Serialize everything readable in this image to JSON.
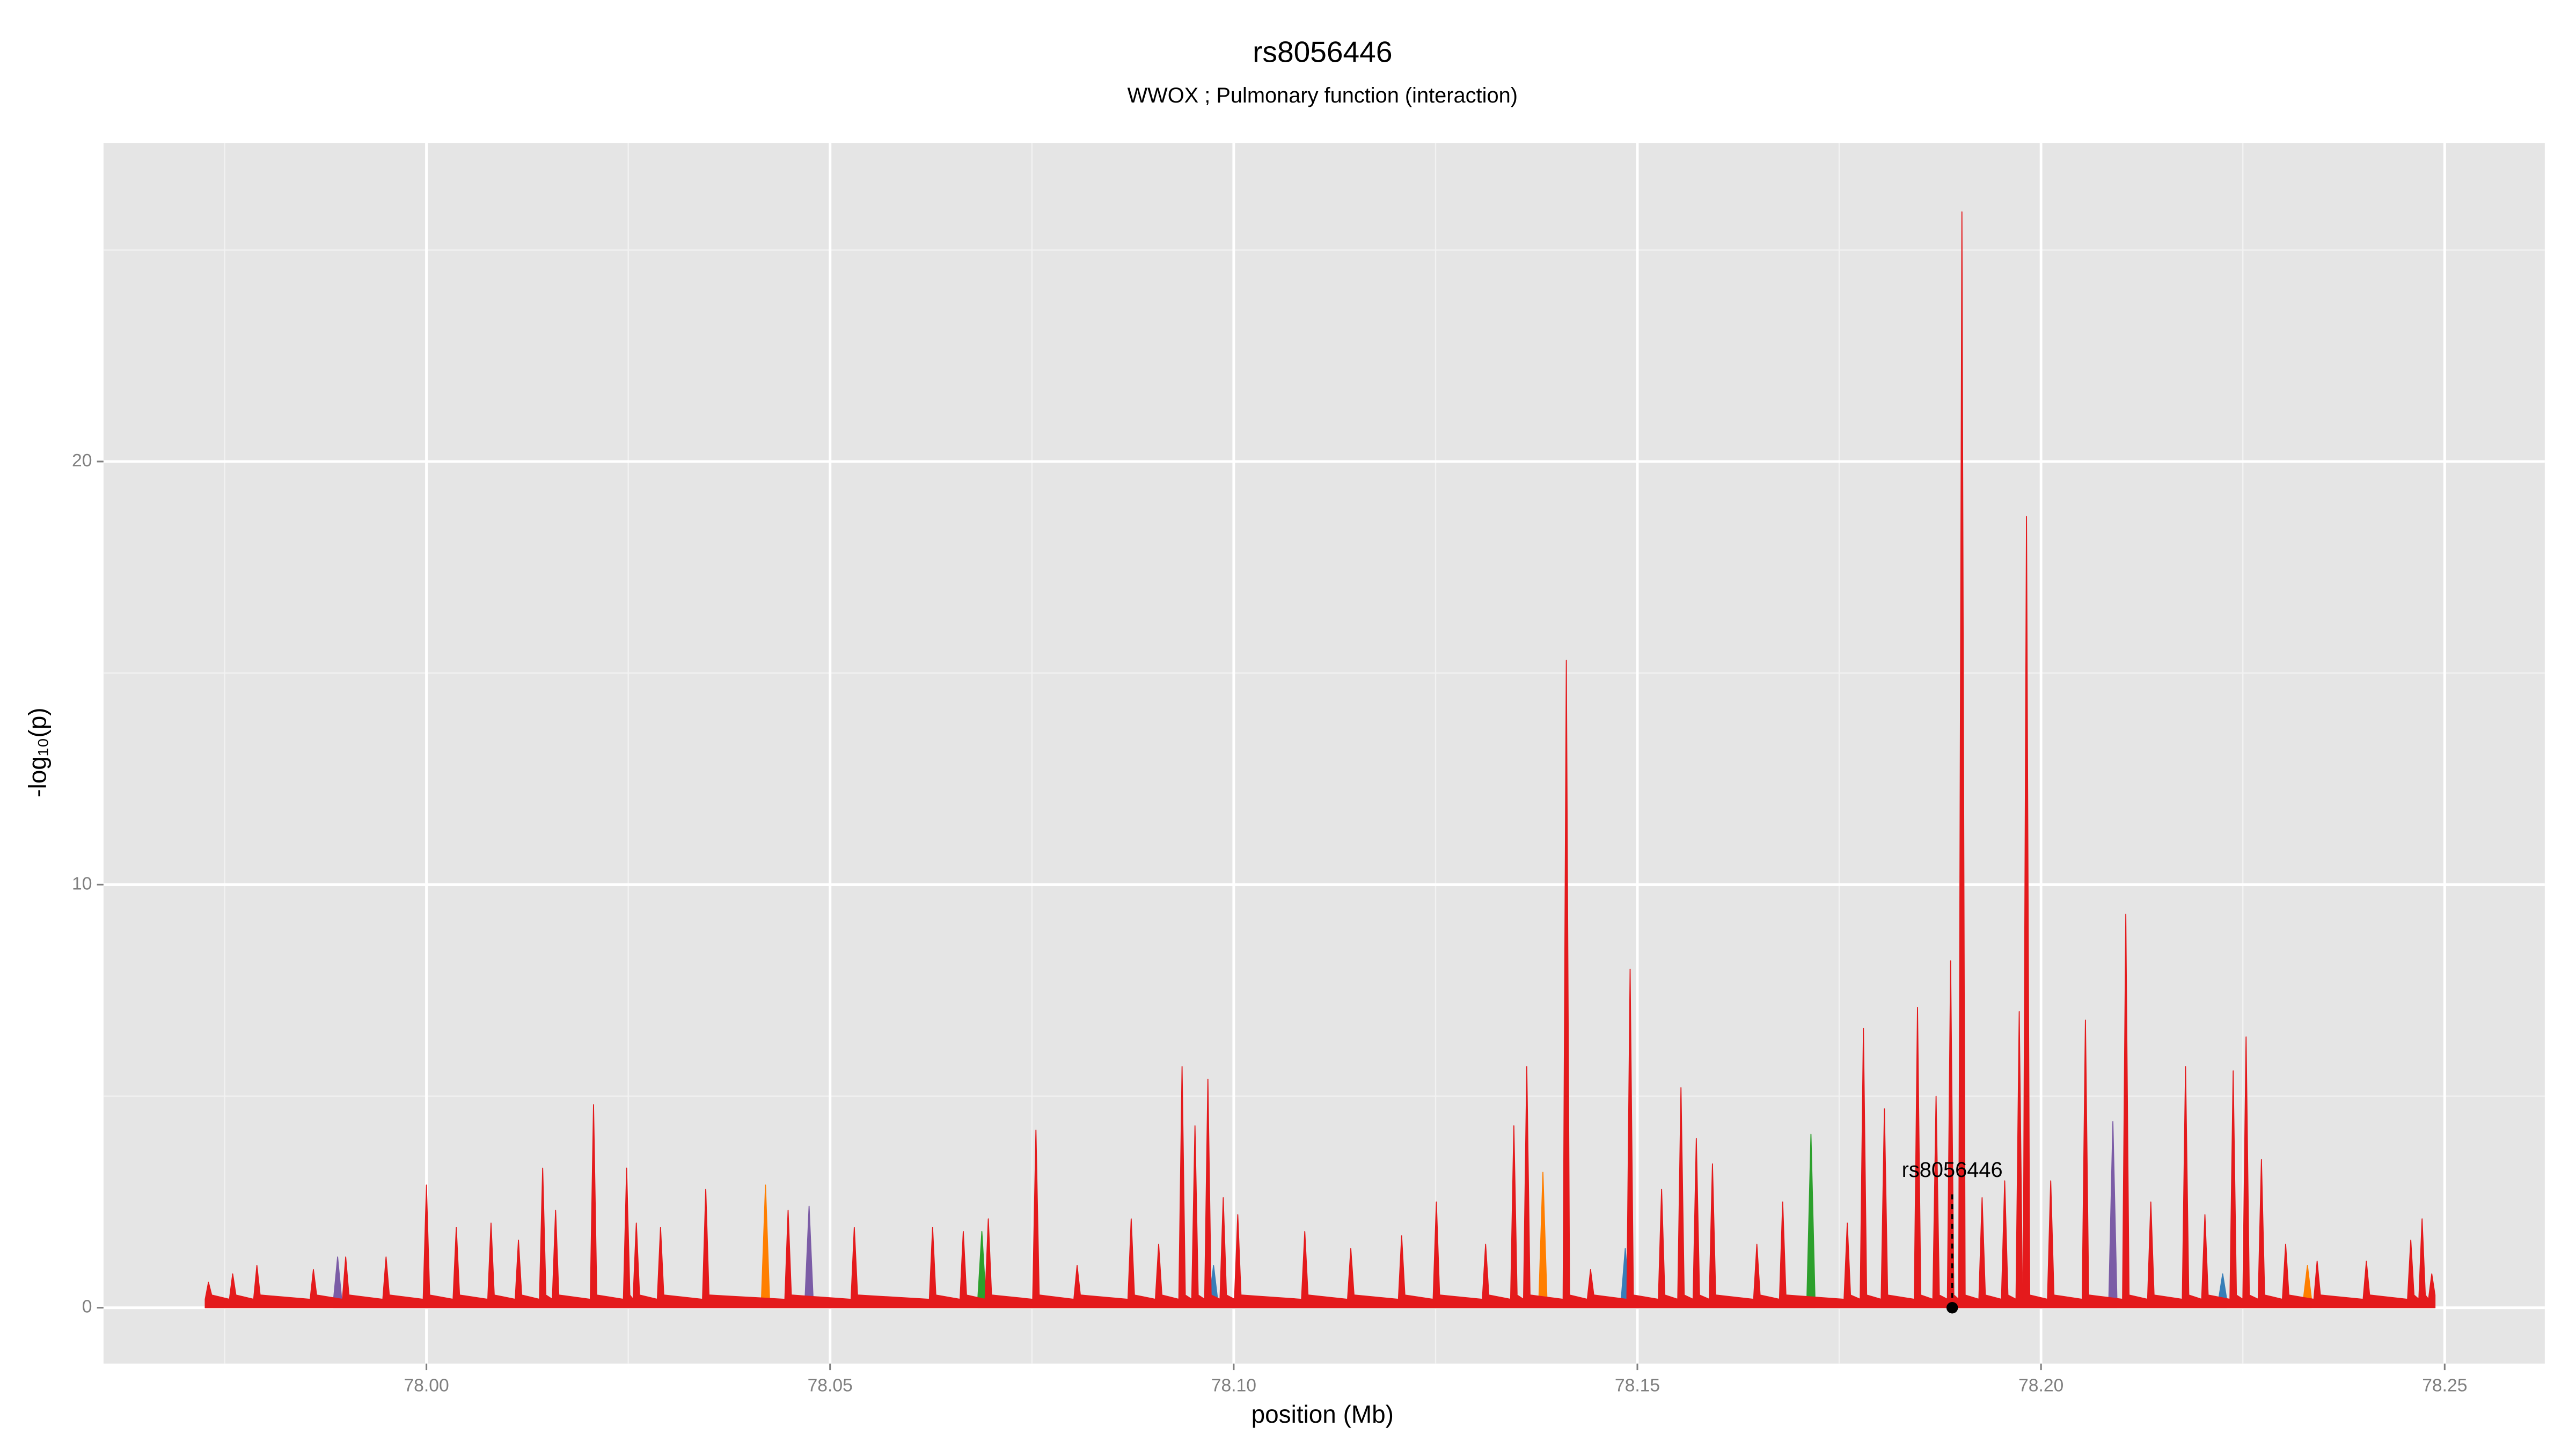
{
  "chart_data": {
    "type": "area",
    "title": "rs8056446",
    "subtitle": "WWOX ; Pulmonary function (interaction)",
    "xlabel": "position (Mb)",
    "ylabel": "-log₁₀(p)",
    "xlim": [
      77.96,
      78.2624
    ],
    "ylim": [
      -1.32,
      27.53
    ],
    "xticks": [
      {
        "value": 78,
        "label": "78.00"
      },
      78.05,
      {
        "value": 78.1,
        "label": "78.10"
      },
      78.15,
      {
        "value": 78.2,
        "label": "78.20"
      },
      78.25
    ],
    "yticks": [
      0,
      10,
      20
    ],
    "xminor": [
      77.975,
      78.025,
      78.075,
      78.125,
      78.175,
      78.225
    ],
    "yminor": [
      5,
      15,
      25
    ],
    "grid": true,
    "series": [
      {
        "color": "#FF7F00",
        "x": [
          78.0415,
          78.042,
          78.0425,
          78.1378,
          78.1383,
          78.1388,
          78.2325,
          78.233,
          78.2335
        ],
        "values": [
          0.2,
          2.9,
          0.2,
          0.2,
          3.2,
          0.2,
          0.2,
          1.0,
          0.2
        ]
      },
      {
        "color": "#7B5CA6",
        "x": [
          77.9885,
          77.989,
          77.9895,
          78.0469,
          78.0474,
          78.0479,
          78.2084,
          78.2089,
          78.2094
        ],
        "values": [
          0.2,
          1.2,
          0.2,
          0.2,
          2.4,
          0.2,
          0.2,
          4.4,
          0.2
        ]
      },
      {
        "color": "#2CA02C",
        "x": [
          78.0683,
          78.0688,
          78.0693,
          78.171,
          78.1715,
          78.172
        ],
        "values": [
          0.2,
          1.8,
          0.2,
          0.2,
          4.1,
          0.2
        ]
      },
      {
        "color": "#377EB8",
        "x": [
          78.097,
          78.0975,
          78.098,
          78.148,
          78.1485,
          78.149,
          78.222,
          78.2225,
          78.223
        ],
        "values": [
          0.2,
          1.0,
          0.2,
          0.2,
          1.4,
          0.2,
          0.2,
          0.8,
          0.2
        ]
      },
      {
        "color": "#E41A1C",
        "x": [
          77.9726,
          77.973,
          77.9734,
          77.9756,
          77.976,
          77.9764,
          77.9786,
          77.979,
          77.9794,
          77.9856,
          77.986,
          77.9864,
          77.9896,
          77.99,
          77.9904,
          77.9946,
          77.995,
          77.9954,
          77.9996,
          78.0,
          78.0004,
          78.0033,
          78.0037,
          78.0041,
          78.0076,
          78.008,
          78.0084,
          78.011,
          78.0114,
          78.0118,
          78.014,
          78.0144,
          78.0148,
          78.0156,
          78.016,
          78.0164,
          78.0203,
          78.0207,
          78.0211,
          78.0244,
          78.0248,
          78.0252,
          78.0256,
          78.026,
          78.0264,
          78.0286,
          78.029,
          78.0294,
          78.0342,
          78.0346,
          78.035,
          78.0444,
          78.0448,
          78.0452,
          78.0526,
          78.053,
          78.0534,
          78.0623,
          78.0627,
          78.0631,
          78.0661,
          78.0665,
          78.0669,
          78.0692,
          78.0696,
          78.07,
          78.0751,
          78.0755,
          78.0759,
          78.0802,
          78.0806,
          78.081,
          78.0869,
          78.0873,
          78.0877,
          78.0903,
          78.0907,
          78.0911,
          78.0932,
          78.0936,
          78.094,
          78.0948,
          78.0952,
          78.0956,
          78.0964,
          78.0968,
          78.0972,
          78.0983,
          78.0987,
          78.0991,
          78.1001,
          78.1005,
          78.1009,
          78.1084,
          78.1088,
          78.1092,
          78.1141,
          78.1145,
          78.1149,
          78.1204,
          78.1208,
          78.1212,
          78.1247,
          78.1251,
          78.1255,
          78.1308,
          78.1312,
          78.1316,
          78.1343,
          78.1347,
          78.1351,
          78.1359,
          78.1363,
          78.1367,
          78.1408,
          78.1412,
          78.1416,
          78.1438,
          78.1442,
          78.1446,
          78.1487,
          78.1491,
          78.1495,
          78.1526,
          78.153,
          78.1534,
          78.155,
          78.1554,
          78.1558,
          78.1569,
          78.1573,
          78.1577,
          78.1589,
          78.1593,
          78.1597,
          78.1644,
          78.1648,
          78.1652,
          78.1676,
          78.168,
          78.1684,
          78.1756,
          78.176,
          78.1764,
          78.1776,
          78.178,
          78.1784,
          78.1802,
          78.1806,
          78.181,
          78.1843,
          78.1847,
          78.1851,
          78.1866,
          78.187,
          78.1874,
          78.1884,
          78.1888,
          78.1892,
          78.1898,
          78.1902,
          78.1906,
          78.1923,
          78.1927,
          78.1931,
          78.1951,
          78.1955,
          78.1959,
          78.1969,
          78.1973,
          78.1977,
          78.1978,
          78.1982,
          78.1986,
          78.2008,
          78.2012,
          78.2016,
          78.2051,
          78.2055,
          78.2059,
          78.2101,
          78.2105,
          78.2109,
          78.2132,
          78.2136,
          78.214,
          78.2175,
          78.2179,
          78.2183,
          78.2199,
          78.2203,
          78.2207,
          78.2234,
          78.2238,
          78.2242,
          78.225,
          78.2254,
          78.2258,
          78.2269,
          78.2273,
          78.2277,
          78.2299,
          78.2303,
          78.2307,
          78.2338,
          78.2342,
          78.2346,
          78.2399,
          78.2403,
          78.2407,
          78.2454,
          78.2458,
          78.2462,
          78.2468,
          78.2472,
          78.2476,
          78.248,
          78.2484,
          78.2488
        ],
        "values": [
          0.2,
          0.6,
          0.3,
          0.2,
          0.8,
          0.3,
          0.2,
          1.0,
          0.3,
          0.2,
          0.9,
          0.3,
          0.2,
          1.2,
          0.3,
          0.2,
          1.2,
          0.3,
          0.2,
          2.9,
          0.3,
          0.2,
          1.9,
          0.3,
          0.2,
          2.0,
          0.3,
          0.2,
          1.6,
          0.3,
          0.2,
          3.3,
          0.3,
          0.2,
          2.3,
          0.3,
          0.2,
          4.8,
          0.3,
          0.2,
          3.3,
          0.3,
          0.2,
          2.0,
          0.3,
          0.2,
          1.9,
          0.3,
          0.2,
          2.8,
          0.3,
          0.2,
          2.3,
          0.3,
          0.2,
          1.9,
          0.3,
          0.2,
          1.9,
          0.3,
          0.2,
          1.8,
          0.3,
          0.2,
          2.1,
          0.3,
          0.2,
          4.2,
          0.3,
          0.2,
          1.0,
          0.3,
          0.2,
          2.1,
          0.3,
          0.2,
          1.5,
          0.3,
          0.2,
          5.7,
          0.3,
          0.2,
          4.3,
          0.3,
          0.2,
          5.4,
          0.3,
          0.2,
          2.6,
          0.3,
          0.2,
          2.2,
          0.3,
          0.2,
          1.8,
          0.3,
          0.2,
          1.4,
          0.3,
          0.2,
          1.7,
          0.3,
          0.2,
          2.5,
          0.3,
          0.2,
          1.5,
          0.3,
          0.2,
          4.3,
          0.3,
          0.2,
          5.7,
          0.3,
          0.2,
          15.3,
          0.3,
          0.2,
          0.9,
          0.3,
          0.2,
          8.0,
          0.3,
          0.2,
          2.8,
          0.3,
          0.2,
          5.2,
          0.3,
          0.2,
          4.0,
          0.3,
          0.2,
          3.4,
          0.3,
          0.2,
          1.5,
          0.3,
          0.2,
          2.5,
          0.3,
          0.2,
          2.0,
          0.3,
          0.2,
          6.6,
          0.3,
          0.2,
          4.7,
          0.3,
          0.2,
          7.1,
          0.3,
          0.2,
          5.0,
          0.3,
          0.2,
          8.2,
          0.3,
          0.2,
          25.9,
          0.3,
          0.2,
          2.6,
          0.3,
          0.2,
          3.0,
          0.3,
          0.2,
          7.0,
          0.3,
          0.2,
          18.7,
          0.3,
          0.2,
          3.0,
          0.3,
          0.2,
          6.8,
          0.3,
          0.2,
          9.3,
          0.3,
          0.2,
          2.5,
          0.3,
          0.2,
          5.7,
          0.3,
          0.2,
          2.2,
          0.3,
          0.2,
          5.6,
          0.3,
          0.2,
          6.4,
          0.3,
          0.2,
          3.5,
          0.3,
          0.2,
          1.5,
          0.3,
          0.2,
          1.1,
          0.3,
          0.2,
          1.1,
          0.3,
          0.2,
          1.6,
          0.3,
          0.2,
          2.1,
          0.3,
          0.2,
          0.8,
          0.3
        ]
      }
    ],
    "annotation": {
      "text": "rs8056446",
      "x": 78.189,
      "y": 0
    }
  }
}
